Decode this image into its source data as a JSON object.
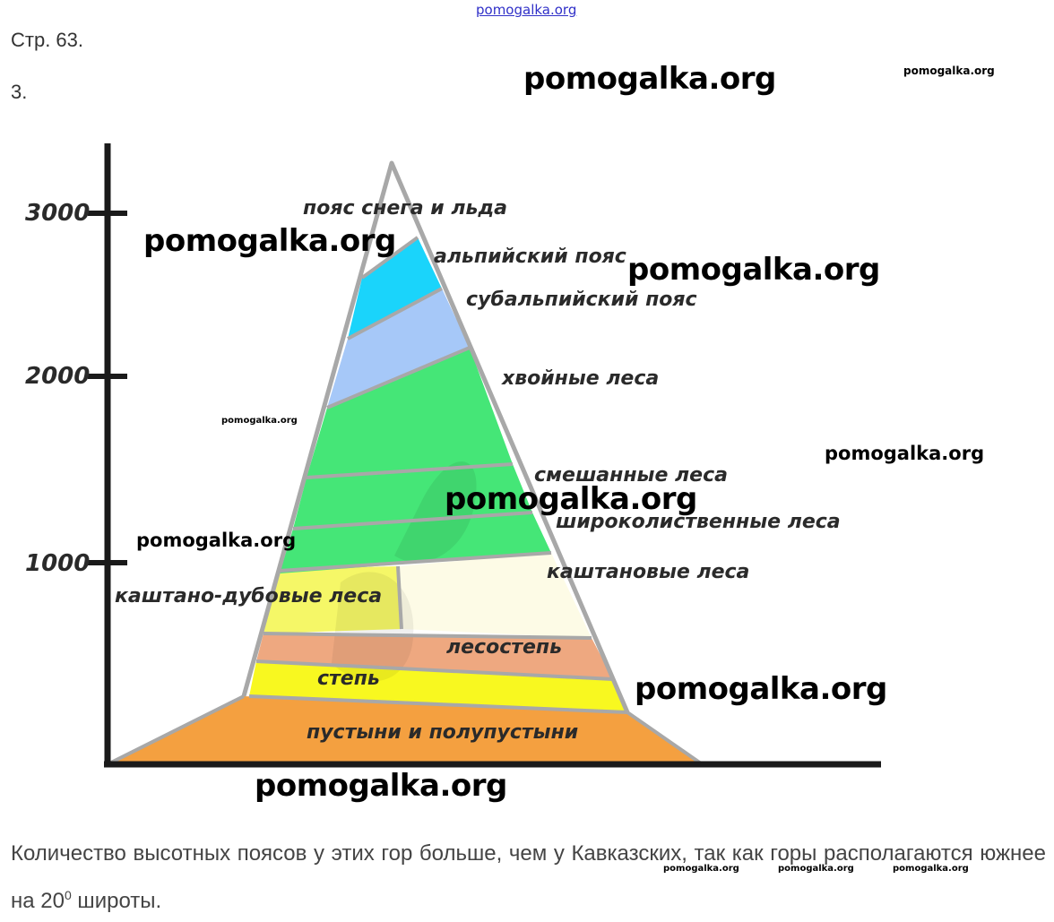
{
  "header": {
    "top_link": "pomogalka.org",
    "page_ref": "Стр. 63.",
    "task_number": "3."
  },
  "diagram": {
    "y_ticks": [
      "3000",
      "2000",
      "1000"
    ],
    "zones": {
      "snow_ice": "пояс снега и льда",
      "alpine": "альпийский пояс",
      "subalpine": "субальпийский пояс",
      "coniferous": "хвойные леса",
      "mixed": "смешанные леса",
      "broadleaf": "широколиственные леса",
      "chestnut": "каштановые леса",
      "chestnut_oak": "каштано-дубовые леса",
      "forest_steppe": "лесостепь",
      "steppe": "степь",
      "deserts": "пустыни и полупустыни"
    },
    "zone_colors": {
      "alpine": "#1ad4fb",
      "subalpine": "#a6c8f8",
      "forest": "#45e677",
      "chestnut": "#fdfbe6",
      "chestnut_oak": "#f5f767",
      "forest_steppe": "#eea880",
      "steppe": "#f8f820",
      "deserts": "#f4a040"
    }
  },
  "watermarks": {
    "text": "pomogalka.org"
  },
  "answer": {
    "text_before": "Количество высотных поясов у этих гор больше, чем у Кавказских, так как горы располагаются южнее на 20",
    "superscript": "0",
    "text_after": " широты."
  }
}
